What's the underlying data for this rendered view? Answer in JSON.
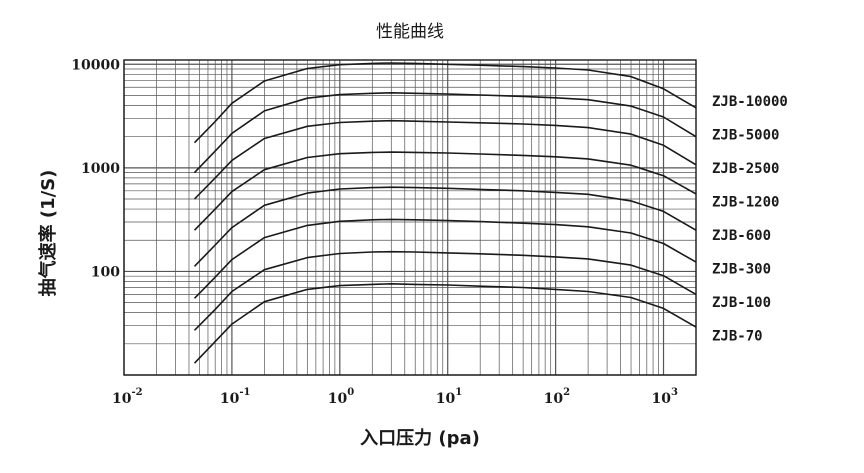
{
  "chart_data": {
    "type": "line",
    "title": "性能曲线",
    "xlabel": "入口压力 (pa)",
    "ylabel": "抽气速率 (1/S)",
    "x_scale": "log",
    "y_scale": "log",
    "xlim": [
      0.01,
      2000
    ],
    "ylim": [
      10,
      11000
    ],
    "grid": true,
    "x_ticks": [
      {
        "base": "10",
        "exp": "-2"
      },
      {
        "base": "10",
        "exp": "-1"
      },
      {
        "base": "10",
        "exp": "0"
      },
      {
        "base": "10",
        "exp": "1"
      },
      {
        "base": "10",
        "exp": "2"
      },
      {
        "base": "10",
        "exp": "3"
      }
    ],
    "y_ticks": [
      "10000",
      "1000",
      "100"
    ],
    "legend_placement": "right, at curve ends",
    "x": [
      0.045,
      0.07,
      0.1,
      0.2,
      0.5,
      1,
      2,
      3,
      5,
      10,
      20,
      50,
      100,
      200,
      500,
      1000,
      2000
    ],
    "series": [
      {
        "name": "ZJB-10000",
        "values": [
          1750,
          2800,
          4200,
          6900,
          9100,
          9900,
          10200,
          10300,
          10200,
          10000,
          9800,
          9500,
          9200,
          8800,
          7600,
          5800,
          3800
        ]
      },
      {
        "name": "ZJB-5000",
        "values": [
          900,
          1450,
          2150,
          3550,
          4700,
          5100,
          5250,
          5300,
          5250,
          5150,
          5050,
          4900,
          4750,
          4550,
          3950,
          3100,
          2000
        ]
      },
      {
        "name": "ZJB-2500",
        "values": [
          500,
          800,
          1180,
          1920,
          2520,
          2740,
          2820,
          2850,
          2820,
          2770,
          2720,
          2650,
          2570,
          2450,
          2120,
          1650,
          1070
        ]
      },
      {
        "name": "ZJB-1200",
        "values": [
          250,
          400,
          590,
          960,
          1260,
          1370,
          1410,
          1420,
          1410,
          1390,
          1360,
          1320,
          1280,
          1220,
          1060,
          840,
          560
        ]
      },
      {
        "name": "ZJB-600",
        "values": [
          112,
          180,
          265,
          435,
          570,
          625,
          645,
          650,
          645,
          635,
          620,
          600,
          580,
          555,
          480,
          380,
          250
        ]
      },
      {
        "name": "ZJB-300",
        "values": [
          55,
          88,
          130,
          212,
          278,
          305,
          315,
          318,
          315,
          310,
          303,
          292,
          283,
          270,
          235,
          186,
          123
        ]
      },
      {
        "name": "ZJB-100",
        "values": [
          27,
          43,
          64,
          104,
          136,
          149,
          154,
          155,
          154,
          151,
          148,
          143,
          138,
          132,
          115,
          91,
          60
        ]
      },
      {
        "name": "ZJB-70",
        "values": [
          13,
          21,
          31,
          51,
          67,
          73,
          75,
          76,
          75,
          74,
          72,
          70,
          67,
          64,
          56,
          44,
          29
        ]
      }
    ],
    "line_color": "#1a1a1a",
    "grid_color": "#555555"
  }
}
